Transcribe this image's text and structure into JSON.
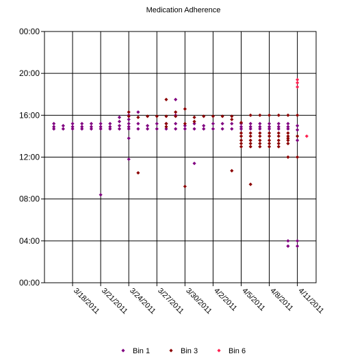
{
  "chart_data": {
    "type": "scatter",
    "title": "Medication Adherence",
    "xlabel": "",
    "ylabel": "",
    "y_unit": "hours of day (0-24)",
    "x_type": "date",
    "xlim": [
      "2011-03-15",
      "2011-04-13"
    ],
    "ylim": [
      0,
      24
    ],
    "grid": true,
    "legend_position": "bottom",
    "x_tick_labels": [
      "3/18/2011",
      "3/21/2011",
      "3/24/2011",
      "3/27/2011",
      "3/30/2011",
      "4/2/2011",
      "4/5/2011",
      "4/8/2011",
      "4/11/2011"
    ],
    "x_ticks": [
      "2011-03-18",
      "2011-03-21",
      "2011-03-24",
      "2011-03-27",
      "2011-03-30",
      "2011-04-02",
      "2011-04-05",
      "2011-04-08",
      "2011-04-11"
    ],
    "y_tick_labels": [
      "00:00",
      "04:00",
      "08:00",
      "12:00",
      "16:00",
      "20:00",
      "00:00"
    ],
    "y_ticks": [
      0,
      4,
      8,
      12,
      16,
      20,
      24
    ],
    "series": [
      {
        "name": "Bin 1",
        "color": "#800080",
        "points": [
          [
            "2011-03-16",
            15.2
          ],
          [
            "2011-03-16",
            14.9
          ],
          [
            "2011-03-16",
            14.7
          ],
          [
            "2011-03-17",
            15.0
          ],
          [
            "2011-03-17",
            14.7
          ],
          [
            "2011-03-18",
            15.2
          ],
          [
            "2011-03-18",
            14.9
          ],
          [
            "2011-03-18",
            14.7
          ],
          [
            "2011-03-19",
            15.2
          ],
          [
            "2011-03-19",
            14.9
          ],
          [
            "2011-03-19",
            14.7
          ],
          [
            "2011-03-20",
            15.2
          ],
          [
            "2011-03-20",
            14.9
          ],
          [
            "2011-03-20",
            14.7
          ],
          [
            "2011-03-21",
            15.2
          ],
          [
            "2011-03-21",
            14.9
          ],
          [
            "2011-03-21",
            14.7
          ],
          [
            "2011-03-21",
            8.4
          ],
          [
            "2011-03-22",
            15.2
          ],
          [
            "2011-03-22",
            14.9
          ],
          [
            "2011-03-22",
            14.7
          ],
          [
            "2011-03-23",
            15.8
          ],
          [
            "2011-03-23",
            15.4
          ],
          [
            "2011-03-23",
            15.0
          ],
          [
            "2011-03-23",
            14.7
          ],
          [
            "2011-03-24",
            16.0
          ],
          [
            "2011-03-24",
            15.6
          ],
          [
            "2011-03-24",
            15.2
          ],
          [
            "2011-03-24",
            14.9
          ],
          [
            "2011-03-24",
            14.7
          ],
          [
            "2011-03-24",
            13.8
          ],
          [
            "2011-03-24",
            11.8
          ],
          [
            "2011-03-25",
            16.3
          ],
          [
            "2011-03-25",
            15.2
          ],
          [
            "2011-03-25",
            14.7
          ],
          [
            "2011-03-26",
            15.0
          ],
          [
            "2011-03-26",
            14.7
          ],
          [
            "2011-03-27",
            15.2
          ],
          [
            "2011-03-27",
            14.7
          ],
          [
            "2011-03-28",
            15.2
          ],
          [
            "2011-03-28",
            14.7
          ],
          [
            "2011-03-29",
            17.5
          ],
          [
            "2011-03-29",
            16.0
          ],
          [
            "2011-03-29",
            15.2
          ],
          [
            "2011-03-29",
            14.7
          ],
          [
            "2011-03-30",
            15.0
          ],
          [
            "2011-03-30",
            14.7
          ],
          [
            "2011-03-31",
            15.2
          ],
          [
            "2011-03-31",
            14.7
          ],
          [
            "2011-03-31",
            11.4
          ],
          [
            "2011-04-01",
            15.0
          ],
          [
            "2011-04-01",
            14.7
          ],
          [
            "2011-04-02",
            15.2
          ],
          [
            "2011-04-02",
            14.7
          ],
          [
            "2011-04-03",
            15.2
          ],
          [
            "2011-04-03",
            14.7
          ],
          [
            "2011-04-04",
            15.2
          ],
          [
            "2011-04-04",
            14.7
          ],
          [
            "2011-04-05",
            15.2
          ],
          [
            "2011-04-05",
            14.9
          ],
          [
            "2011-04-05",
            14.7
          ],
          [
            "2011-04-06",
            15.2
          ],
          [
            "2011-04-06",
            14.9
          ],
          [
            "2011-04-06",
            14.7
          ],
          [
            "2011-04-07",
            15.2
          ],
          [
            "2011-04-07",
            14.9
          ],
          [
            "2011-04-07",
            14.7
          ],
          [
            "2011-04-08",
            15.2
          ],
          [
            "2011-04-08",
            14.9
          ],
          [
            "2011-04-08",
            14.7
          ],
          [
            "2011-04-09",
            15.2
          ],
          [
            "2011-04-09",
            14.9
          ],
          [
            "2011-04-09",
            14.7
          ],
          [
            "2011-04-10",
            15.2
          ],
          [
            "2011-04-10",
            14.9
          ],
          [
            "2011-04-10",
            14.7
          ],
          [
            "2011-04-10",
            4.0
          ],
          [
            "2011-04-10",
            3.5
          ],
          [
            "2011-04-11",
            15.0
          ],
          [
            "2011-04-11",
            14.6
          ],
          [
            "2011-04-11",
            13.6
          ],
          [
            "2011-04-11",
            4.0
          ],
          [
            "2011-04-11",
            3.5
          ]
        ]
      },
      {
        "name": "Bin 3",
        "color": "#8b0000",
        "points": [
          [
            "2011-03-24",
            16.3
          ],
          [
            "2011-03-24",
            15.9
          ],
          [
            "2011-03-25",
            15.8
          ],
          [
            "2011-03-25",
            10.5
          ],
          [
            "2011-03-26",
            15.9
          ],
          [
            "2011-03-27",
            15.9
          ],
          [
            "2011-03-28",
            17.5
          ],
          [
            "2011-03-28",
            15.9
          ],
          [
            "2011-03-28",
            15.2
          ],
          [
            "2011-03-28",
            14.9
          ],
          [
            "2011-03-29",
            16.3
          ],
          [
            "2011-03-29",
            15.9
          ],
          [
            "2011-03-30",
            16.6
          ],
          [
            "2011-03-30",
            15.2
          ],
          [
            "2011-03-30",
            9.2
          ],
          [
            "2011-03-31",
            15.8
          ],
          [
            "2011-03-31",
            15.4
          ],
          [
            "2011-04-01",
            15.9
          ],
          [
            "2011-04-02",
            15.9
          ],
          [
            "2011-04-03",
            15.9
          ],
          [
            "2011-04-04",
            15.9
          ],
          [
            "2011-04-04",
            15.6
          ],
          [
            "2011-04-04",
            10.7
          ],
          [
            "2011-04-05",
            15.3
          ],
          [
            "2011-04-05",
            14.3
          ],
          [
            "2011-04-05",
            14.0
          ],
          [
            "2011-04-05",
            13.6
          ],
          [
            "2011-04-05",
            13.3
          ],
          [
            "2011-04-05",
            13.0
          ],
          [
            "2011-04-06",
            16.0
          ],
          [
            "2011-04-06",
            14.3
          ],
          [
            "2011-04-06",
            14.0
          ],
          [
            "2011-04-06",
            13.6
          ],
          [
            "2011-04-06",
            13.3
          ],
          [
            "2011-04-06",
            13.0
          ],
          [
            "2011-04-06",
            9.4
          ],
          [
            "2011-04-07",
            16.0
          ],
          [
            "2011-04-07",
            14.3
          ],
          [
            "2011-04-07",
            14.0
          ],
          [
            "2011-04-07",
            13.6
          ],
          [
            "2011-04-07",
            13.3
          ],
          [
            "2011-04-07",
            13.0
          ],
          [
            "2011-04-08",
            16.0
          ],
          [
            "2011-04-08",
            14.3
          ],
          [
            "2011-04-08",
            14.0
          ],
          [
            "2011-04-08",
            13.6
          ],
          [
            "2011-04-08",
            13.3
          ],
          [
            "2011-04-08",
            13.0
          ],
          [
            "2011-04-09",
            16.0
          ],
          [
            "2011-04-09",
            14.3
          ],
          [
            "2011-04-09",
            14.0
          ],
          [
            "2011-04-09",
            13.6
          ],
          [
            "2011-04-09",
            13.3
          ],
          [
            "2011-04-09",
            13.0
          ],
          [
            "2011-04-10",
            16.0
          ],
          [
            "2011-04-10",
            14.3
          ],
          [
            "2011-04-10",
            14.0
          ],
          [
            "2011-04-10",
            13.8
          ],
          [
            "2011-04-10",
            13.6
          ],
          [
            "2011-04-10",
            13.3
          ],
          [
            "2011-04-10",
            12.0
          ],
          [
            "2011-04-11",
            16.0
          ],
          [
            "2011-04-11",
            14.0
          ],
          [
            "2011-04-11",
            12.0
          ]
        ]
      },
      {
        "name": "Bin 6",
        "color": "#ff2050",
        "points": [
          [
            "2011-04-11",
            19.4
          ],
          [
            "2011-04-11",
            19.1
          ],
          [
            "2011-04-11",
            18.7
          ],
          [
            "2011-04-12",
            14.0
          ]
        ]
      }
    ]
  }
}
